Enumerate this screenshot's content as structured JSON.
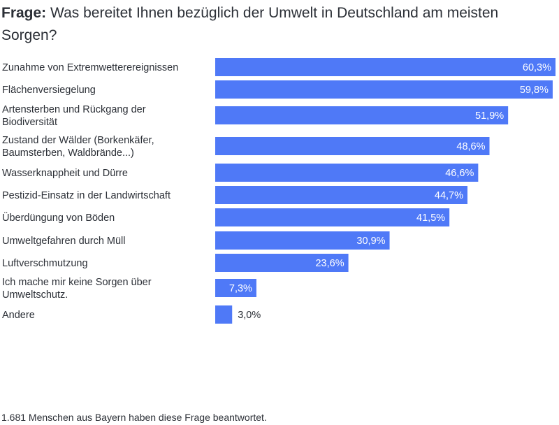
{
  "question": {
    "prefix": "Frage:",
    "text": "Was bereitet Ihnen bezüglich der Umwelt in Deutschland am meisten Sorgen?"
  },
  "chart_data": {
    "type": "bar",
    "orientation": "horizontal",
    "bar_color": "#4f79f7",
    "label_color_inside": "#ffffff",
    "label_color_outside": "#2b2f36",
    "xlim": [
      0,
      60.3
    ],
    "categories": [
      [
        "Zunahme von Extremwetterereignissen"
      ],
      [
        "Flächenversiegelung"
      ],
      [
        "Artensterben und Rückgang der",
        "Biodiversität"
      ],
      [
        "Zustand der Wälder (Borkenkäfer,",
        "Baumsterben, Waldbrände...)"
      ],
      [
        "Wasserknappheit und Dürre"
      ],
      [
        "Pestizid-Einsatz in der Landwirtschaft"
      ],
      [
        "Überdüngung von Böden"
      ],
      [
        "Umweltgefahren durch Müll"
      ],
      [
        "Luftverschmutzung"
      ],
      [
        "Ich mache mir keine Sorgen über",
        "Umweltschutz."
      ],
      [
        "Andere"
      ]
    ],
    "values": [
      60.3,
      59.8,
      51.9,
      48.6,
      46.6,
      44.7,
      41.5,
      30.9,
      23.6,
      7.3,
      3.0
    ],
    "value_labels": [
      "60,3%",
      "59,8%",
      "51,9%",
      "48,6%",
      "46,6%",
      "44,7%",
      "41,5%",
      "30,9%",
      "23,6%",
      "7,3%",
      "3,0%"
    ]
  },
  "footer": {
    "text": "1.681 Menschen aus Bayern haben diese Frage beantwortet."
  }
}
